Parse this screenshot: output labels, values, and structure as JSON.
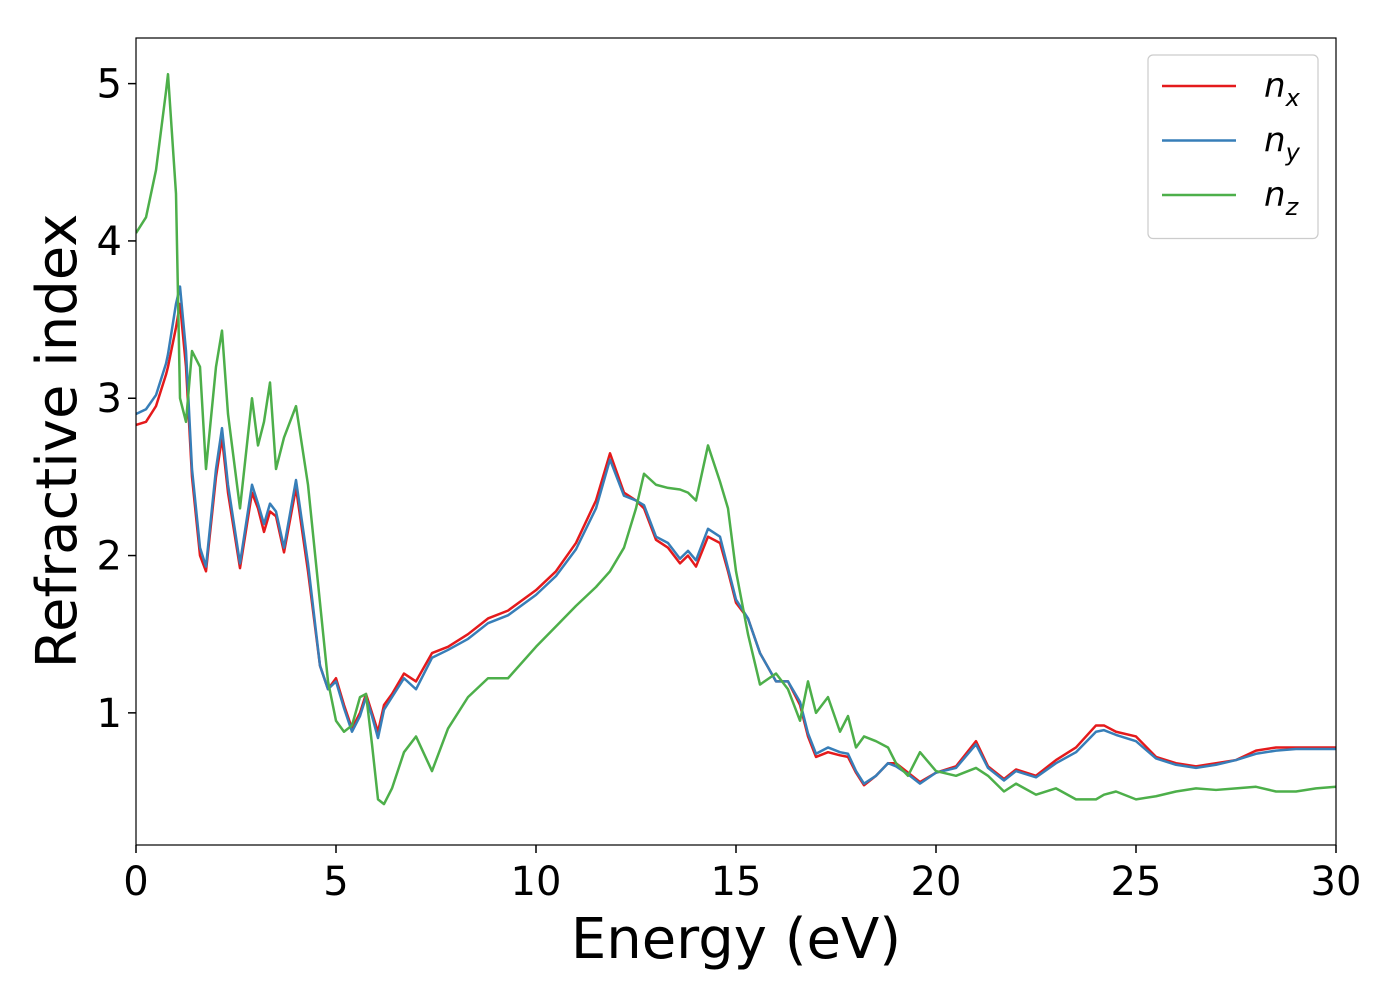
{
  "chart_data": {
    "type": "line",
    "x_label": "Energy (eV)",
    "y_label": "Refractive index",
    "xlim": [
      0,
      30
    ],
    "ylim": [
      0.16,
      5.29
    ],
    "xticks": [
      0,
      5,
      10,
      15,
      20,
      25,
      30
    ],
    "yticks": [
      1,
      2,
      3,
      4,
      5
    ],
    "legend": "upper right",
    "x": [
      0,
      0.25,
      0.5,
      0.75,
      0.8,
      1.0,
      1.1,
      1.25,
      1.4,
      1.6,
      1.75,
      2.0,
      2.15,
      2.3,
      2.6,
      2.9,
      3.05,
      3.2,
      3.35,
      3.5,
      3.7,
      4.0,
      4.3,
      4.6,
      4.8,
      5.0,
      5.2,
      5.4,
      5.6,
      5.75,
      5.9,
      6.05,
      6.2,
      6.4,
      6.7,
      7.0,
      7.4,
      7.8,
      8.3,
      8.8,
      9.3,
      10,
      10.5,
      11,
      11.5,
      11.85,
      12.2,
      12.5,
      12.7,
      13,
      13.3,
      13.6,
      13.8,
      14.0,
      14.3,
      14.6,
      14.8,
      15.0,
      15.3,
      15.6,
      16.0,
      16.3,
      16.6,
      16.8,
      17.0,
      17.3,
      17.6,
      17.8,
      18.0,
      18.2,
      18.5,
      18.8,
      19.0,
      19.3,
      19.6,
      20,
      20.5,
      21,
      21.3,
      21.7,
      22,
      22.5,
      23,
      23.5,
      24,
      24.2,
      24.5,
      25,
      25.5,
      26,
      26.5,
      27,
      27.5,
      28,
      28.5,
      29,
      29.5,
      30
    ],
    "series": [
      {
        "name": "nx",
        "color": "#e41a1c",
        "values": [
          2.83,
          2.85,
          2.95,
          3.15,
          3.2,
          3.45,
          3.6,
          3.2,
          2.5,
          2.0,
          1.9,
          2.5,
          2.75,
          2.4,
          1.92,
          2.4,
          2.3,
          2.15,
          2.28,
          2.25,
          2.02,
          2.43,
          1.9,
          1.3,
          1.15,
          1.22,
          1.05,
          0.9,
          1.0,
          1.12,
          1.0,
          0.88,
          1.05,
          1.12,
          1.25,
          1.2,
          1.38,
          1.42,
          1.5,
          1.6,
          1.65,
          1.78,
          1.9,
          2.08,
          2.35,
          2.65,
          2.4,
          2.35,
          2.3,
          2.1,
          2.05,
          1.95,
          2.0,
          1.93,
          2.12,
          2.08,
          1.9,
          1.7,
          1.6,
          1.38,
          1.2,
          1.2,
          1.05,
          0.85,
          0.72,
          0.75,
          0.73,
          0.72,
          0.62,
          0.54,
          0.6,
          0.68,
          0.68,
          0.62,
          0.56,
          0.62,
          0.66,
          0.82,
          0.66,
          0.58,
          0.64,
          0.6,
          0.7,
          0.78,
          0.92,
          0.92,
          0.88,
          0.85,
          0.72,
          0.68,
          0.66,
          0.68,
          0.7,
          0.76,
          0.78,
          0.78,
          0.78,
          0.78
        ]
      },
      {
        "name": "ny",
        "color": "#377eb8",
        "values": [
          2.9,
          2.93,
          3.02,
          3.22,
          3.28,
          3.6,
          3.71,
          3.3,
          2.55,
          2.05,
          1.93,
          2.55,
          2.81,
          2.45,
          1.95,
          2.45,
          2.33,
          2.2,
          2.33,
          2.28,
          2.05,
          2.48,
          1.95,
          1.3,
          1.15,
          1.2,
          1.03,
          0.88,
          0.98,
          1.1,
          0.98,
          0.84,
          1.02,
          1.1,
          1.22,
          1.15,
          1.35,
          1.4,
          1.47,
          1.57,
          1.62,
          1.75,
          1.87,
          2.04,
          2.3,
          2.61,
          2.38,
          2.35,
          2.32,
          2.12,
          2.08,
          1.98,
          2.03,
          1.97,
          2.17,
          2.12,
          1.92,
          1.72,
          1.6,
          1.38,
          1.2,
          1.2,
          1.07,
          0.87,
          0.74,
          0.78,
          0.75,
          0.74,
          0.63,
          0.55,
          0.6,
          0.68,
          0.66,
          0.61,
          0.55,
          0.62,
          0.65,
          0.8,
          0.65,
          0.57,
          0.63,
          0.59,
          0.68,
          0.75,
          0.88,
          0.89,
          0.86,
          0.82,
          0.71,
          0.67,
          0.65,
          0.67,
          0.7,
          0.74,
          0.76,
          0.77,
          0.77,
          0.77
        ]
      },
      {
        "name": "nz",
        "color": "#4daf4a",
        "values": [
          4.05,
          4.15,
          4.45,
          4.95,
          5.06,
          4.3,
          3.0,
          2.85,
          3.3,
          3.2,
          2.55,
          3.2,
          3.43,
          2.9,
          2.3,
          3.0,
          2.7,
          2.85,
          3.1,
          2.55,
          2.75,
          2.95,
          2.45,
          1.7,
          1.2,
          0.95,
          0.88,
          0.92,
          1.1,
          1.12,
          0.8,
          0.45,
          0.42,
          0.52,
          0.75,
          0.85,
          0.63,
          0.9,
          1.1,
          1.22,
          1.22,
          1.42,
          1.55,
          1.68,
          1.8,
          1.9,
          2.05,
          2.3,
          2.52,
          2.45,
          2.43,
          2.42,
          2.4,
          2.35,
          2.7,
          2.47,
          2.3,
          1.9,
          1.5,
          1.18,
          1.25,
          1.15,
          0.95,
          1.2,
          1.0,
          1.1,
          0.88,
          0.98,
          0.78,
          0.85,
          0.82,
          0.78,
          0.68,
          0.6,
          0.75,
          0.63,
          0.6,
          0.65,
          0.6,
          0.5,
          0.55,
          0.48,
          0.52,
          0.45,
          0.45,
          0.48,
          0.5,
          0.45,
          0.47,
          0.5,
          0.52,
          0.51,
          0.52,
          0.53,
          0.5,
          0.5,
          0.52,
          0.53
        ]
      }
    ]
  }
}
